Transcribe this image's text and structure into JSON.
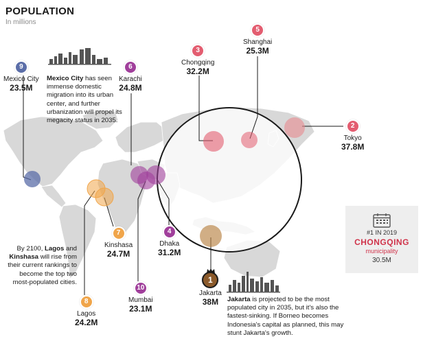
{
  "header": {
    "title": "POPULATION",
    "subtitle": "In millions"
  },
  "colors": {
    "map_land": "#d8d8d8",
    "accent_red": "#d0334a",
    "jakarta_brown": "#8b5a2b",
    "mexico_blue": "#5b6ea8",
    "purple": "#a03f9b",
    "orange": "#f0a54a"
  },
  "cities": [
    {
      "rank": "1",
      "name": "Jakarta",
      "value": "38M",
      "badge_icon": "crown-icon"
    },
    {
      "rank": "2",
      "name": "Tokyo",
      "value": "37.8M"
    },
    {
      "rank": "3",
      "name": "Chongqing",
      "value": "32.2M"
    },
    {
      "rank": "4",
      "name": "Dhaka",
      "value": "31.2M"
    },
    {
      "rank": "5",
      "name": "Shanghai",
      "value": "25.3M"
    },
    {
      "rank": "6",
      "name": "Karachi",
      "value": "24.8M"
    },
    {
      "rank": "7",
      "name": "Kinshasa",
      "value": "24.7M"
    },
    {
      "rank": "8",
      "name": "Lagos",
      "value": "24.2M"
    },
    {
      "rank": "9",
      "name": "Mexico City",
      "value": "23.5M"
    },
    {
      "rank": "10",
      "name": "Mumbai",
      "value": "23.1M"
    }
  ],
  "notes": {
    "mexico": {
      "bold": "Mexico City",
      "text": " has seen immense domestic migration into its urban center, and further urbanization will propel its megacity status in 2035."
    },
    "africa": {
      "pre": "By 2100, ",
      "b1": "Lagos",
      "mid": " and ",
      "b2": "Kinshasa",
      "text": " will rise from their current rankings to become the top two most-populated cities."
    },
    "jakarta": {
      "bold": "Jakarta",
      "text": " is projected to be the most populated city in 2035, but it's also the fastest-sinking. If Borneo becomes Indonesia's capital as planned, this may stunt Jakarta's growth."
    }
  },
  "infobox": {
    "icon": "calendar-icon",
    "rank_label": "#1 IN 2019",
    "city": "CHONGQING",
    "type": "municipality",
    "value": "30.5M"
  }
}
